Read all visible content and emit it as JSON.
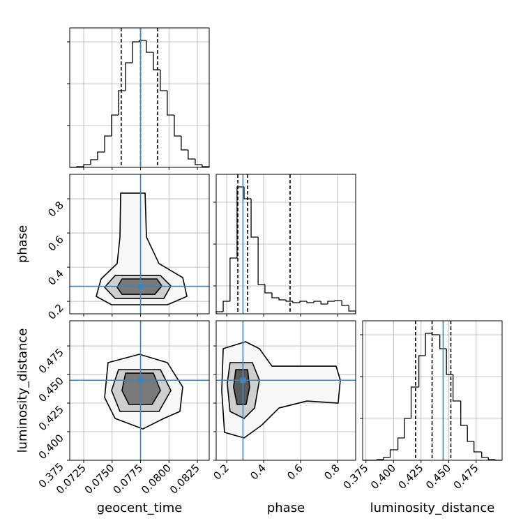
{
  "chart_data": [
    {
      "type": "histogram",
      "color": "#000000",
      "truth_color": "#4682b4",
      "grid": true,
      "xlim": [
        0.07127,
        0.08354
      ],
      "ylim": [
        0,
        1
      ],
      "ygrid": [
        0.3,
        0.6,
        0.9
      ],
      "bins": [
        0.07127,
        0.07188,
        0.0725,
        0.07311,
        0.07372,
        0.07434,
        0.07495,
        0.07556,
        0.07618,
        0.07679,
        0.0774,
        0.07801,
        0.07863,
        0.07924,
        0.07985,
        0.08047,
        0.08108,
        0.08169,
        0.08231,
        0.08292,
        0.08354
      ],
      "values": [
        0,
        0.005,
        0.02,
        0.055,
        0.11,
        0.225,
        0.375,
        0.55,
        0.75,
        0.9,
        0.91,
        0.825,
        0.7,
        0.55,
        0.375,
        0.225,
        0.125,
        0.06,
        0.02,
        0.005
      ],
      "quantiles": [
        0.0758,
        0.0775,
        0.079
      ],
      "truth": 0.0775
    },
    {
      "type": "contour",
      "color": "#000000",
      "truth_color": "#4682b4",
      "grid": true,
      "xlim": [
        0.07127,
        0.08354
      ],
      "ylim": [
        0.127,
        0.943
      ],
      "yticks": [
        0.2,
        0.4,
        0.6,
        0.8
      ],
      "ylabel": "phase",
      "contours": [
        {
          "fill": "#f7f7f7",
          "x": [
            0.07575,
            0.0779,
            0.07802,
            0.07912,
            0.08121,
            0.08158,
            0.07986,
            0.07495,
            0.0736,
            0.07403,
            0.07544,
            0.07569
          ],
          "y": [
            0.833,
            0.833,
            0.576,
            0.421,
            0.339,
            0.229,
            0.18,
            0.18,
            0.229,
            0.331,
            0.421,
            0.576
          ]
        },
        {
          "fill": "#cfcfcf",
          "x": [
            0.07526,
            0.07925,
            0.08017,
            0.07955,
            0.07526,
            0.07434
          ],
          "y": [
            0.351,
            0.351,
            0.29,
            0.217,
            0.217,
            0.282
          ]
        },
        {
          "fill": "#7a7a7a",
          "x": [
            0.07587,
            0.07894,
            0.07937,
            0.07875,
            0.07587,
            0.07544
          ],
          "y": [
            0.331,
            0.331,
            0.29,
            0.241,
            0.241,
            0.282
          ]
        }
      ],
      "truth_x": 0.0775,
      "truth_y": 0.288
    },
    {
      "type": "histogram",
      "color": "#000000",
      "truth_color": "#4682b4",
      "grid": true,
      "xlim": [
        0.143,
        0.898
      ],
      "ylim": [
        0,
        1
      ],
      "ygrid": [
        0.2,
        0.5,
        0.8
      ],
      "bins": [
        0.143,
        0.181,
        0.218,
        0.256,
        0.294,
        0.332,
        0.37,
        0.407,
        0.445,
        0.483,
        0.521,
        0.558,
        0.596,
        0.634,
        0.672,
        0.71,
        0.747,
        0.785,
        0.823,
        0.861,
        0.898
      ],
      "values": [
        0.015,
        0.09,
        0.4,
        0.91,
        0.825,
        0.55,
        0.21,
        0.15,
        0.115,
        0.1,
        0.09,
        0.08,
        0.09,
        0.08,
        0.09,
        0.07,
        0.09,
        0.095,
        0.06,
        0.02
      ],
      "quantiles": [
        0.26,
        0.313,
        0.543
      ],
      "truth": 0.288
    },
    {
      "type": "contour",
      "color": "#000000",
      "truth_color": "#4682b4",
      "grid": true,
      "xlim": [
        0.07127,
        0.08354
      ],
      "ylim": [
        0.375,
        0.497
      ],
      "xticks": [
        0.0725,
        {
          "value": 0.075,
          "label": "0.0750"
        },
        0.0775,
        {
          "value": 0.08,
          "label": "0.0800"
        },
        0.0825
      ],
      "yticks": [
        0.375,
        {
          "value": 0.4,
          "label": "0.400"
        },
        0.425,
        {
          "value": 0.45,
          "label": "0.450"
        },
        0.475
      ],
      "xlabel": "geocent_time",
      "ylabel": "luminosity_distance",
      "contours": [
        {
          "fill": "#f7f7f7",
          "x": [
            0.07464,
            0.0774,
            0.07986,
            0.08121,
            0.08096,
            0.07955,
            0.07771,
            0.07526,
            0.07434
          ],
          "y": [
            0.4604,
            0.4677,
            0.4604,
            0.439,
            0.4177,
            0.4116,
            0.4024,
            0.4116,
            0.4299
          ]
        },
        {
          "fill": "#cfcfcf",
          "x": [
            0.07556,
            0.07925,
            0.08017,
            0.07912,
            0.07569,
            0.07495
          ],
          "y": [
            0.4543,
            0.4543,
            0.436,
            0.4177,
            0.4177,
            0.436
          ]
        },
        {
          "fill": "#7a7a7a",
          "x": [
            0.07618,
            0.07863,
            0.07925,
            0.07851,
            0.07648,
            0.07587
          ],
          "y": [
            0.4512,
            0.4512,
            0.436,
            0.4238,
            0.4238,
            0.436
          ]
        }
      ],
      "truth_x": 0.0775,
      "truth_y": 0.445
    },
    {
      "type": "contour",
      "color": "#000000",
      "truth_color": "#4682b4",
      "grid": true,
      "xlim": [
        0.143,
        0.898
      ],
      "ylim": [
        0.375,
        0.497
      ],
      "xticks": [
        0.2,
        0.4,
        0.6,
        0.8
      ],
      "xlabel": "phase",
      "contours": [
        {
          "fill": "#f7f7f7",
          "x": [
            0.181,
            0.302,
            0.377,
            0.445,
            0.792,
            0.815,
            0.803,
            0.634,
            0.483,
            0.388,
            0.294,
            0.188,
            0.173
          ],
          "y": [
            0.4726,
            0.4787,
            0.4726,
            0.4573,
            0.4573,
            0.4451,
            0.425,
            0.4268,
            0.4207,
            0.4055,
            0.3945,
            0.3994,
            0.436
          ]
        },
        {
          "fill": "#cfcfcf",
          "x": [
            0.218,
            0.339,
            0.377,
            0.351,
            0.294,
            0.218,
            0.203
          ],
          "y": [
            0.4604,
            0.4604,
            0.4451,
            0.4207,
            0.4116,
            0.4177,
            0.4421
          ]
        },
        {
          "fill": "#5a5a5a",
          "x": [
            0.249,
            0.313,
            0.324,
            0.305,
            0.256,
            0.237
          ],
          "y": [
            0.4543,
            0.4543,
            0.439,
            0.4238,
            0.4238,
            0.439
          ]
        }
      ],
      "truth_x": 0.288,
      "truth_y": 0.445
    },
    {
      "type": "histogram",
      "color": "#000000",
      "truth_color": "#4682b4",
      "grid": true,
      "xlim": [
        0.372,
        0.4985
      ],
      "ylim": [
        0,
        1
      ],
      "ygrid": [
        0.3,
        0.6,
        0.9
      ],
      "xticks": [
        0.375,
        {
          "value": 0.4,
          "label": "0.400"
        },
        0.425,
        {
          "value": 0.45,
          "label": "0.450"
        },
        0.475
      ],
      "xlabel": "luminosity_distance",
      "bins": [
        0.372,
        0.378,
        0.385,
        0.391,
        0.397,
        0.404,
        0.41,
        0.416,
        0.423,
        0.429,
        0.435,
        0.442,
        0.448,
        0.454,
        0.461,
        0.467,
        0.473,
        0.48,
        0.486,
        0.492,
        0.4985
      ],
      "values": [
        0,
        0,
        0.005,
        0.02,
        0.075,
        0.16,
        0.3,
        0.525,
        0.75,
        0.91,
        0.9,
        0.8,
        0.615,
        0.425,
        0.25,
        0.135,
        0.06,
        0.02,
        0.005,
        0
      ],
      "quantiles": [
        0.42,
        0.435,
        0.452
      ],
      "truth": 0.445
    }
  ]
}
